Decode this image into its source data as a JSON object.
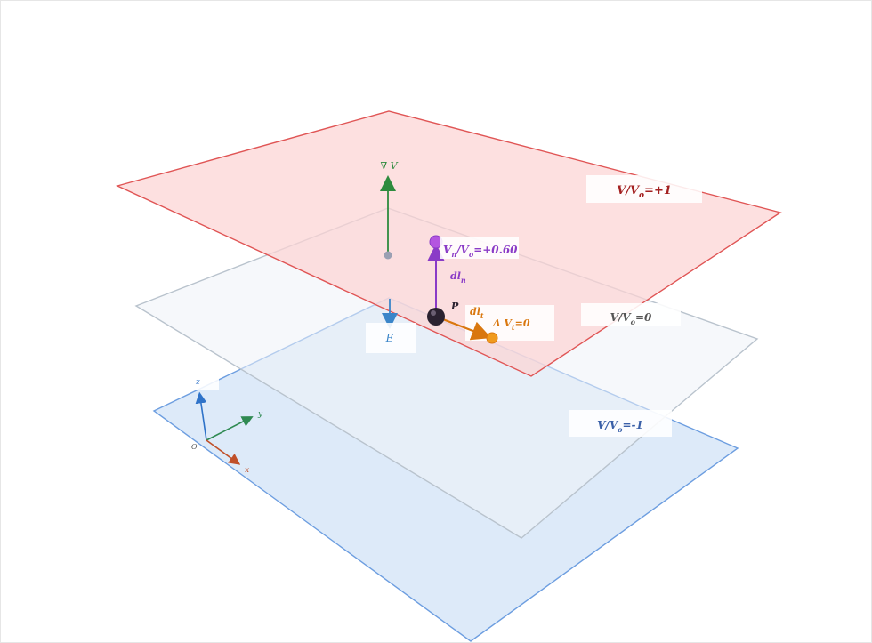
{
  "planes": {
    "top": {
      "label": "V/V",
      "sub": "o",
      "value": "=+1",
      "color": "#a32020",
      "fill": "#fcd4d4",
      "stroke": "#e05555"
    },
    "middle": {
      "label": "V/V",
      "sub": "o",
      "value": "=0",
      "color": "#555555",
      "fill": "#eef3f8",
      "stroke": "#b9c3cd"
    },
    "bottom": {
      "label": "V/V",
      "sub": "o",
      "value": "=-1",
      "color": "#3a60a8",
      "fill": "#d7e6f8",
      "stroke": "#6d9ee0"
    }
  },
  "vectors": {
    "gradient": {
      "label": "∇ V",
      "color": "#2e8b3e"
    },
    "field": {
      "label": "E",
      "color": "#3a85c9"
    },
    "normal_step": {
      "label": "dl",
      "sub": "n",
      "color": "#8a3bc7"
    },
    "tangent_step": {
      "label": "dl",
      "sub": "t",
      "color": "#d9770f"
    }
  },
  "points": {
    "p": {
      "label": "P",
      "color": "#2a2230"
    },
    "n_end": {
      "label": "V",
      "sub1": "n",
      "mid": "/V",
      "sub2": "o",
      "value": "=+0.60",
      "color": "#8a3bc7"
    },
    "t_end": {
      "label": "Δ V",
      "sub": "t",
      "value": "=0",
      "color": "#d9770f"
    }
  },
  "axes": {
    "z": {
      "label": "z",
      "color": "#2f73c9"
    },
    "y": {
      "label": "y",
      "color": "#2f8a52"
    },
    "x": {
      "label": "x",
      "color": "#c0502a"
    },
    "origin": {
      "label": "O"
    }
  }
}
